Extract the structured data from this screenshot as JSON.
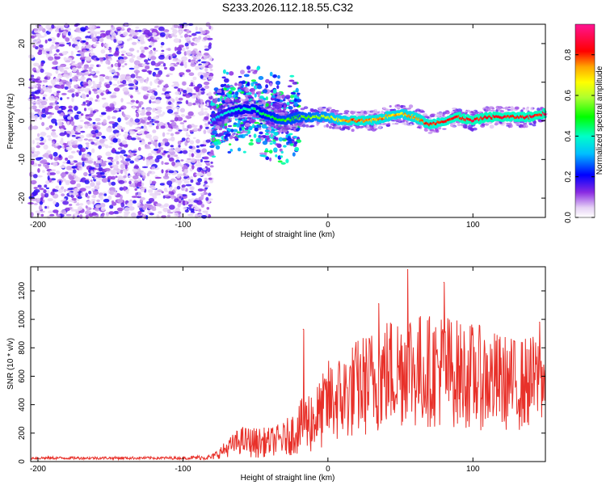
{
  "title": "S233.2026.112.18.55.C32",
  "chart_data": [
    {
      "type": "heatmap",
      "title": "",
      "xlabel": "Height of straight line (km)",
      "ylabel": "Frequency (Hz)",
      "xlim": [
        -205,
        150
      ],
      "ylim": [
        -25,
        25
      ],
      "xticks": [
        "-200",
        "-100",
        "0",
        "100"
      ],
      "yticks": [
        "-20",
        "-10",
        "0",
        "10",
        "20"
      ],
      "xtick_values": [
        -200,
        -100,
        0,
        100
      ],
      "ytick_values": [
        -20,
        -10,
        0,
        10,
        20
      ],
      "colorbar": {
        "label": "Normalized spectral amplitude",
        "range": [
          0,
          0.95
        ],
        "ticks": [
          "0.0",
          "0.2",
          "0.4",
          "0.6",
          "0.8"
        ],
        "tick_values": [
          0.0,
          0.2,
          0.4,
          0.6,
          0.8
        ]
      },
      "noise_region_x": [
        -205,
        -80
      ],
      "transition_region_x": [
        -80,
        -20
      ],
      "ridge": {
        "x": [
          -80,
          -70,
          -60,
          -50,
          -40,
          -30,
          -20,
          -10,
          0,
          10,
          20,
          30,
          40,
          50,
          60,
          70,
          80,
          90,
          100,
          110,
          120,
          130,
          140,
          150
        ],
        "y": [
          0,
          2,
          3,
          3,
          1,
          0,
          1,
          1,
          1,
          0,
          0,
          0,
          1,
          2,
          1,
          -1,
          0,
          1,
          0,
          1,
          1,
          1,
          1,
          2
        ],
        "amp": [
          0.35,
          0.4,
          0.45,
          0.45,
          0.5,
          0.55,
          0.55,
          0.6,
          0.65,
          0.75,
          0.85,
          0.8,
          0.8,
          0.75,
          0.8,
          0.85,
          0.85,
          0.9,
          0.9,
          0.9,
          0.9,
          0.88,
          0.9,
          0.9
        ]
      }
    },
    {
      "type": "line",
      "title": "",
      "xlabel": "Height of straight line (km)",
      "ylabel": "SNR (10 * v/v)",
      "xlim": [
        -205,
        150
      ],
      "ylim": [
        0,
        1370
      ],
      "xticks": [
        "-200",
        "-100",
        "0",
        "100"
      ],
      "yticks": [
        "0",
        "200",
        "400",
        "600",
        "800",
        "1000",
        "1200"
      ],
      "xtick_values": [
        -200,
        -100,
        0,
        100
      ],
      "ytick_values": [
        0,
        200,
        400,
        600,
        800,
        1000,
        1200
      ],
      "series": [
        {
          "name": "SNR",
          "color": "#e8312a",
          "envelope_x": [
            -205,
            -100,
            -80,
            -70,
            -60,
            -50,
            -40,
            -30,
            -20,
            -15,
            -10,
            -5,
            0,
            10,
            20,
            30,
            40,
            50,
            55,
            60,
            70,
            80,
            90,
            100,
            110,
            120,
            130,
            140,
            150
          ],
          "envelope_mean": [
            25,
            25,
            30,
            90,
            150,
            130,
            140,
            160,
            230,
            280,
            300,
            330,
            420,
            450,
            520,
            560,
            620,
            650,
            700,
            640,
            640,
            650,
            620,
            600,
            580,
            560,
            540,
            560,
            600
          ],
          "envelope_amp": [
            10,
            10,
            20,
            60,
            100,
            110,
            100,
            120,
            180,
            220,
            250,
            250,
            300,
            320,
            350,
            380,
            400,
            420,
            450,
            420,
            400,
            420,
            380,
            380,
            360,
            340,
            330,
            330,
            300
          ],
          "peaks": [
            {
              "x": -17,
              "y": 930
            },
            {
              "x": 35,
              "y": 1110
            },
            {
              "x": 55,
              "y": 1350
            },
            {
              "x": 80,
              "y": 1260
            },
            {
              "x": 146,
              "y": 980
            }
          ]
        }
      ]
    }
  ]
}
